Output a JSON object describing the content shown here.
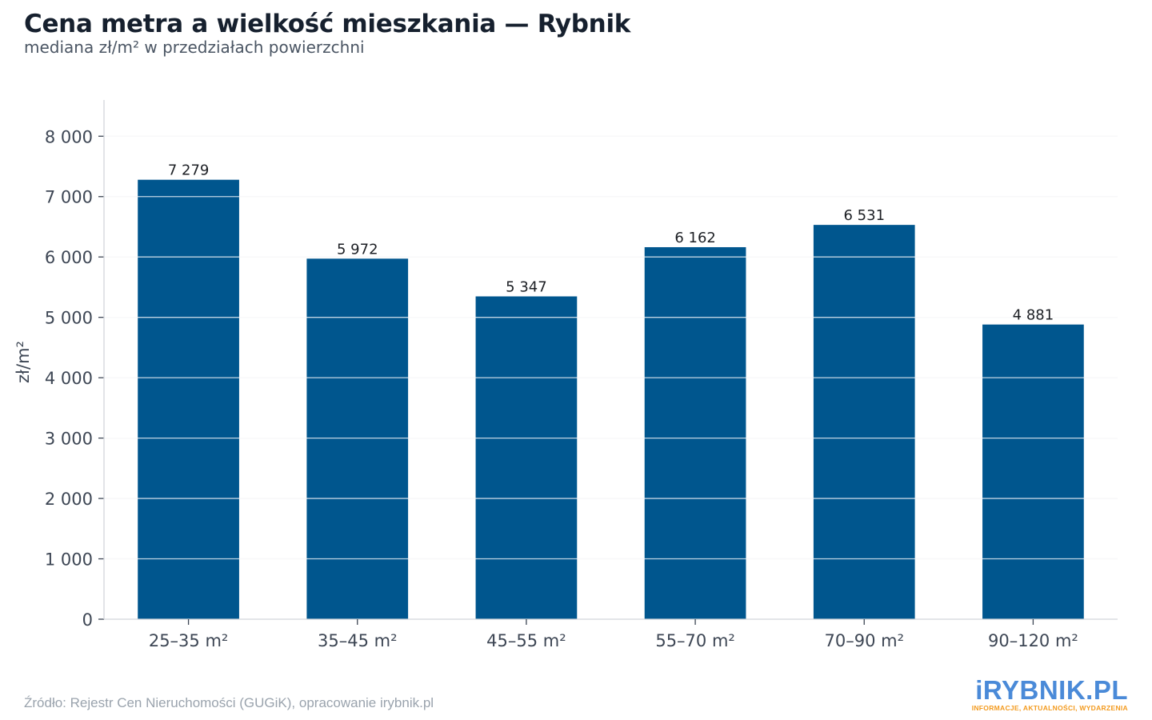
{
  "header": {
    "title": "Cena metra a wielkość mieszkania — Rybnik",
    "subtitle": "mediana zł/m² w przedziałach powierzchni"
  },
  "footer": {
    "source": "Źródło: Rejestr Cen Nieruchomości (GUGiK), opracowanie irybnik.pl"
  },
  "logo": {
    "name": "iRYBNIK.PL",
    "tagline": "INFORMACJE, AKTUALNOŚCI, WYDARZENIA"
  },
  "colors": {
    "bar": "#00568e",
    "grid": "#e6e8eb",
    "axis": "#d2d5da",
    "tick_text": "#3d4654",
    "label_text": "#1c1f24"
  },
  "chart_data": {
    "type": "bar",
    "title": "Cena metra a wielkość mieszkania — Rybnik",
    "subtitle": "mediana zł/m² w przedziałach powierzchni",
    "xlabel": "",
    "ylabel": "zł/m²",
    "categories": [
      "25–35 m²",
      "35–45 m²",
      "45–55 m²",
      "55–70 m²",
      "70–90 m²",
      "90–120 m²"
    ],
    "values": [
      7279,
      5972,
      5347,
      6162,
      6531,
      4881
    ],
    "value_labels": [
      "7 279",
      "5 972",
      "5 347",
      "6 162",
      "6 531",
      "4 881"
    ],
    "ylim": [
      0,
      8600
    ],
    "yticks": [
      0,
      1000,
      2000,
      3000,
      4000,
      5000,
      6000,
      7000,
      8000
    ],
    "ytick_labels": [
      "0",
      "1 000",
      "2 000",
      "3 000",
      "4 000",
      "5 000",
      "6 000",
      "7 000",
      "8 000"
    ],
    "grid": true,
    "legend": "none"
  }
}
